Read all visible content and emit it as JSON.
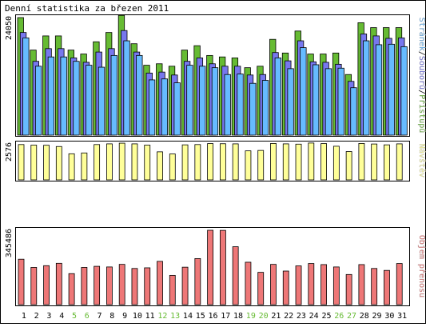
{
  "title": "Denní statistika za březen 2011",
  "colors": {
    "hits": "#66bb33",
    "files": "#7777ee",
    "pages": "#66bbff",
    "visits": "#ffff99",
    "volume": "#ee7777",
    "weekend_day": "#66bb33",
    "weekday": "#000000",
    "frame": "#000000",
    "background": "#ffffff"
  },
  "chart_data": [
    {
      "type": "bar",
      "name": "hits-files-pages",
      "title": "Denní statistika za březen 2011",
      "y_max_label": "24050",
      "ylim": [
        0,
        24050
      ],
      "side_label": {
        "parts": [
          {
            "text": "Stránek",
            "color": "#66bbff"
          },
          {
            "text": "/",
            "color": "#000000"
          },
          {
            "text": "Souborů",
            "color": "#7777ee"
          },
          {
            "text": "/",
            "color": "#000000"
          },
          {
            "text": "Přístupů",
            "color": "#66bb33"
          }
        ]
      },
      "categories": [
        "1",
        "2",
        "3",
        "4",
        "5",
        "6",
        "7",
        "8",
        "9",
        "10",
        "11",
        "12",
        "13",
        "14",
        "15",
        "16",
        "17",
        "18",
        "19",
        "20",
        "21",
        "22",
        "23",
        "24",
        "25",
        "26",
        "27",
        "28",
        "29",
        "30",
        "31"
      ],
      "series": [
        {
          "name": "Přístupů",
          "color": "#66bb33",
          "values": [
            24050,
            17400,
            20300,
            20300,
            17400,
            16600,
            19100,
            21000,
            24500,
            18700,
            14300,
            14600,
            14100,
            17400,
            18300,
            16300,
            16000,
            15800,
            13800,
            14100,
            19600,
            16800,
            21300,
            16600,
            16600,
            16800,
            12400,
            23000,
            22000,
            22000,
            22000
          ]
        },
        {
          "name": "Souborů",
          "color": "#7777ee",
          "values": [
            21000,
            15100,
            17700,
            17700,
            15800,
            14900,
            17000,
            17700,
            21400,
            17000,
            12700,
            12900,
            12300,
            15100,
            15800,
            14600,
            14100,
            14100,
            12300,
            12400,
            16900,
            15200,
            19300,
            15000,
            14900,
            14500,
            11000,
            20700,
            20300,
            19800,
            19900
          ]
        },
        {
          "name": "Stránek",
          "color": "#66bbff",
          "values": [
            19900,
            14100,
            16000,
            16000,
            15100,
            14300,
            13900,
            16300,
            19300,
            16300,
            11300,
            11500,
            10700,
            14300,
            14100,
            13800,
            12400,
            12500,
            10600,
            11200,
            15800,
            13600,
            17900,
            14400,
            13600,
            13700,
            9700,
            19300,
            18500,
            18600,
            18100
          ]
        }
      ]
    },
    {
      "type": "bar",
      "name": "visits",
      "y_max_label": "2576",
      "ylim": [
        0,
        2576
      ],
      "side_label": {
        "parts": [
          {
            "text": "Návštěv",
            "color": "#ffff99"
          }
        ]
      },
      "categories": [
        "1",
        "2",
        "3",
        "4",
        "5",
        "6",
        "7",
        "8",
        "9",
        "10",
        "11",
        "12",
        "13",
        "14",
        "15",
        "16",
        "17",
        "18",
        "19",
        "20",
        "21",
        "22",
        "23",
        "24",
        "25",
        "26",
        "27",
        "28",
        "29",
        "30",
        "31"
      ],
      "series": [
        {
          "name": "Návštěv",
          "color": "#ffff99",
          "values": [
            2530,
            2490,
            2480,
            2390,
            1870,
            1930,
            2530,
            2580,
            2630,
            2580,
            2490,
            2010,
            1860,
            2510,
            2530,
            2600,
            2590,
            2580,
            2080,
            2110,
            2610,
            2580,
            2560,
            2640,
            2600,
            2410,
            2030,
            2610,
            2570,
            2510,
            2580
          ]
        }
      ]
    },
    {
      "type": "bar",
      "name": "volume",
      "y_max_label": "345486",
      "ylim": [
        0,
        345486
      ],
      "side_label": {
        "parts": [
          {
            "text": "Objem přenosu",
            "color": "#ee7777"
          }
        ]
      },
      "categories": [
        "1",
        "2",
        "3",
        "4",
        "5",
        "6",
        "7",
        "8",
        "9",
        "10",
        "11",
        "12",
        "13",
        "14",
        "15",
        "16",
        "17",
        "18",
        "19",
        "20",
        "21",
        "22",
        "23",
        "24",
        "25",
        "26",
        "27",
        "28",
        "29",
        "30",
        "31"
      ],
      "series": [
        {
          "name": "Objem přenosu",
          "color": "#ee7777",
          "values": [
            211000,
            173000,
            181000,
            192000,
            144000,
            173000,
            178000,
            175000,
            187000,
            168000,
            171000,
            201000,
            136000,
            174000,
            214000,
            345486,
            345000,
            269000,
            197000,
            150000,
            187000,
            156000,
            180000,
            191000,
            186000,
            175000,
            140000,
            186000,
            168000,
            159000,
            191000
          ]
        }
      ]
    }
  ],
  "x_axis": {
    "labels": [
      "1",
      "2",
      "3",
      "4",
      "5",
      "6",
      "7",
      "8",
      "9",
      "10",
      "11",
      "12",
      "13",
      "14",
      "15",
      "16",
      "17",
      "18",
      "19",
      "20",
      "21",
      "22",
      "23",
      "24",
      "25",
      "26",
      "27",
      "28",
      "29",
      "30",
      "31"
    ],
    "weekend": [
      false,
      false,
      false,
      false,
      true,
      true,
      false,
      false,
      false,
      false,
      false,
      true,
      true,
      false,
      false,
      false,
      false,
      false,
      true,
      true,
      false,
      false,
      false,
      false,
      false,
      true,
      true,
      false,
      false,
      false,
      false
    ]
  }
}
